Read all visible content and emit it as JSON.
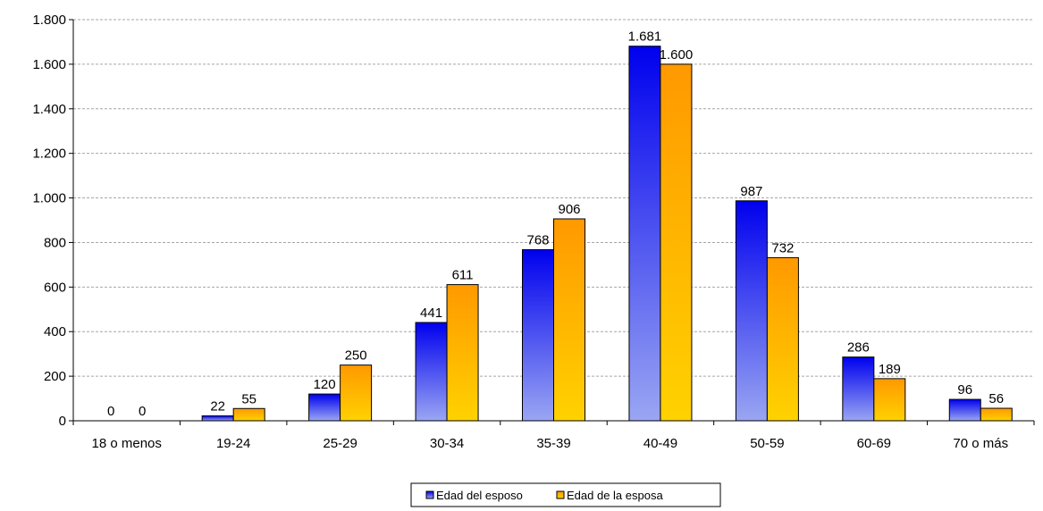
{
  "chart_data": {
    "type": "bar",
    "categories": [
      "18 o menos",
      "19-24",
      "25-29",
      "30-34",
      "35-39",
      "40-49",
      "50-59",
      "60-69",
      "70 o más"
    ],
    "series": [
      {
        "name": "Edad del esposo",
        "values": [
          0,
          22,
          120,
          441,
          768,
          1681,
          987,
          286,
          96
        ],
        "labels": [
          "0",
          "22",
          "120",
          "441",
          "768",
          "1.681",
          "987",
          "286",
          "96"
        ],
        "color": "#0000ee"
      },
      {
        "name": "Edad de la esposa",
        "values": [
          0,
          55,
          250,
          611,
          906,
          1600,
          732,
          189,
          56
        ],
        "labels": [
          "0",
          "55",
          "250",
          "611",
          "906",
          "1.600",
          "732",
          "189",
          "56"
        ],
        "color": "#ffa500"
      }
    ],
    "y_ticks": [
      0,
      200,
      400,
      600,
      800,
      1000,
      1200,
      1400,
      1600,
      1800
    ],
    "y_tick_labels": [
      "0",
      "200",
      "400",
      "600",
      "800",
      "1.000",
      "1.200",
      "1.400",
      "1.600",
      "1.800"
    ],
    "ylim": [
      0,
      1800
    ],
    "grid": true,
    "legend": "bottom-center"
  }
}
